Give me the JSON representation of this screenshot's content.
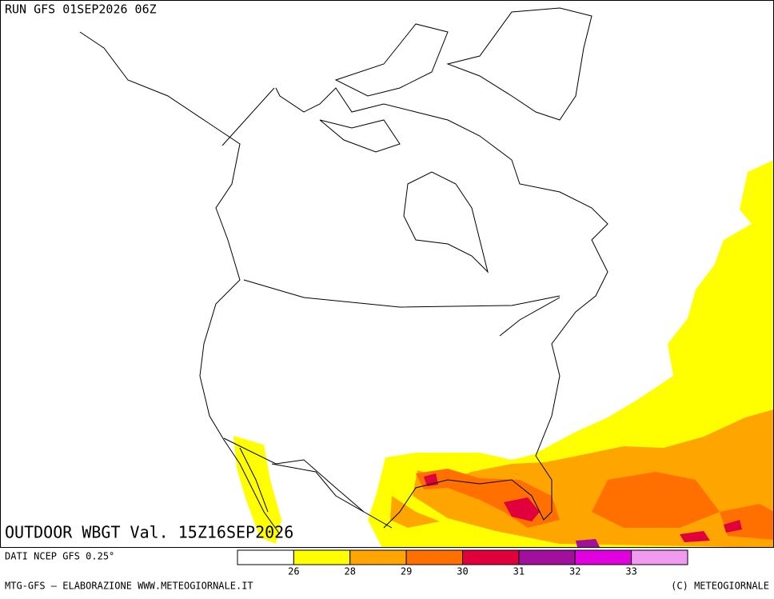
{
  "header": {
    "run": "RUN GFS 01SEP2026 06Z"
  },
  "map": {
    "title": "OUTDOOR WBGT Val. 15Z16SEP2026"
  },
  "legend": {
    "colors": [
      "#ffffff",
      "#ffff00",
      "#ffa500",
      "#ff7000",
      "#e0003c",
      "#a0109c",
      "#e000e0",
      "#f09af0"
    ],
    "labels": [
      26,
      28,
      29,
      30,
      31,
      32,
      33
    ]
  },
  "footer": {
    "source": "DATI NCEP GFS 0.25°",
    "credit": "MTG-GFS — ELABORAZIONE WWW.METEOGIORNALE.IT",
    "copyright": "(C) METEOGIORNALE"
  }
}
